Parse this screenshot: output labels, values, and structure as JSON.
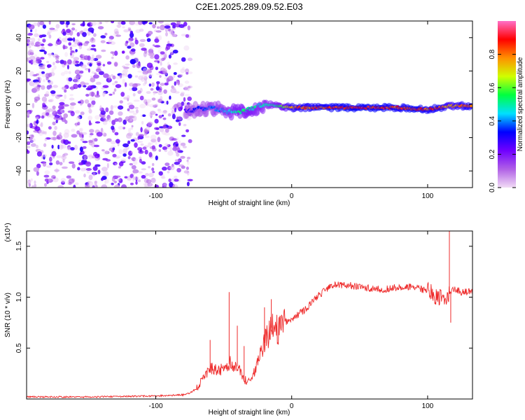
{
  "figure": {
    "title": "C2E1.2025.289.09.52.E03"
  },
  "chart_data": [
    {
      "type": "heatmap",
      "name": "spectrogram",
      "xlabel": "Height of straight line (km)",
      "ylabel": "Frequency (Hz)",
      "xlim": [
        -195,
        133
      ],
      "ylim": [
        -50,
        50
      ],
      "xticks": [
        -100,
        0,
        100
      ],
      "yticks": [
        -40,
        -20,
        0,
        20,
        40
      ],
      "noise_region_x": [
        -195,
        -78
      ],
      "signal_track": {
        "x": [
          -78,
          -70,
          -60,
          -50,
          -40,
          -30,
          -20,
          -10,
          0,
          20,
          40,
          60,
          80,
          90,
          100,
          110,
          116,
          133
        ],
        "freq": [
          -4,
          -3,
          -2,
          -4,
          -5,
          -3,
          0,
          -1,
          -2,
          -2,
          -2,
          -2,
          -2,
          -3,
          -3,
          -2,
          -1,
          -1
        ],
        "amplitude": [
          0.3,
          0.35,
          0.4,
          0.45,
          0.55,
          0.55,
          0.5,
          0.55,
          0.85,
          0.9,
          0.95,
          0.95,
          0.9,
          0.95,
          0.9,
          0.9,
          0.8,
          0.9
        ]
      },
      "colorbar": {
        "label": "Normalized spectral amplitude",
        "range": [
          0,
          1
        ],
        "ticks": [
          0.0,
          0.2,
          0.4,
          0.6,
          0.8
        ],
        "tick_labels": [
          "0.0",
          "0.2",
          "0.4",
          "0.6",
          "0.8"
        ],
        "colors": [
          "#f2dcf5",
          "#b060e6",
          "#7000ff",
          "#0000ff",
          "#00e0ff",
          "#00ff40",
          "#d0ff00",
          "#ff9000",
          "#ff0000",
          "#ff70c8"
        ]
      }
    },
    {
      "type": "line",
      "name": "snr",
      "xlabel": "Height of straight line (km)",
      "ylabel": "SNR (10 * v/v)",
      "y_multiplier": "(x10⁴)",
      "xlim": [
        -195,
        133
      ],
      "ylim": [
        0,
        1.65
      ],
      "xticks": [
        -100,
        0,
        100
      ],
      "yticks": [
        0.5,
        1.0,
        1.5
      ],
      "ytick_labels": [
        "0.5",
        "1.0",
        "1.5"
      ],
      "color": "#ee2a2a",
      "series": [
        {
          "name": "SNR",
          "x": [
            -195,
            -150,
            -100,
            -80,
            -75,
            -70,
            -65,
            -60,
            -55,
            -50,
            -45,
            -40,
            -35,
            -30,
            -25,
            -20,
            -15,
            -10,
            -5,
            0,
            10,
            20,
            30,
            40,
            50,
            60,
            70,
            80,
            90,
            100,
            105,
            110,
            114,
            117,
            120,
            125,
            133
          ],
          "y": [
            0.02,
            0.02,
            0.03,
            0.04,
            0.06,
            0.1,
            0.2,
            0.3,
            0.28,
            0.3,
            0.35,
            0.32,
            0.18,
            0.2,
            0.35,
            0.55,
            0.7,
            0.68,
            0.75,
            0.78,
            0.88,
            1.02,
            1.12,
            1.12,
            1.1,
            1.08,
            1.08,
            1.1,
            1.1,
            1.06,
            1.02,
            1.0,
            1.0,
            1.05,
            1.08,
            1.05,
            1.05
          ]
        }
      ],
      "spikes": [
        {
          "x": -60,
          "y": 0.58
        },
        {
          "x": -46,
          "y": 1.05
        },
        {
          "x": -40,
          "y": 0.72
        },
        {
          "x": -35,
          "y": 0.52
        },
        {
          "x": -20,
          "y": 0.9
        },
        {
          "x": -15,
          "y": 0.98
        },
        {
          "x": 116,
          "y": 1.65
        },
        {
          "x": 117,
          "y": 0.75
        }
      ]
    }
  ]
}
